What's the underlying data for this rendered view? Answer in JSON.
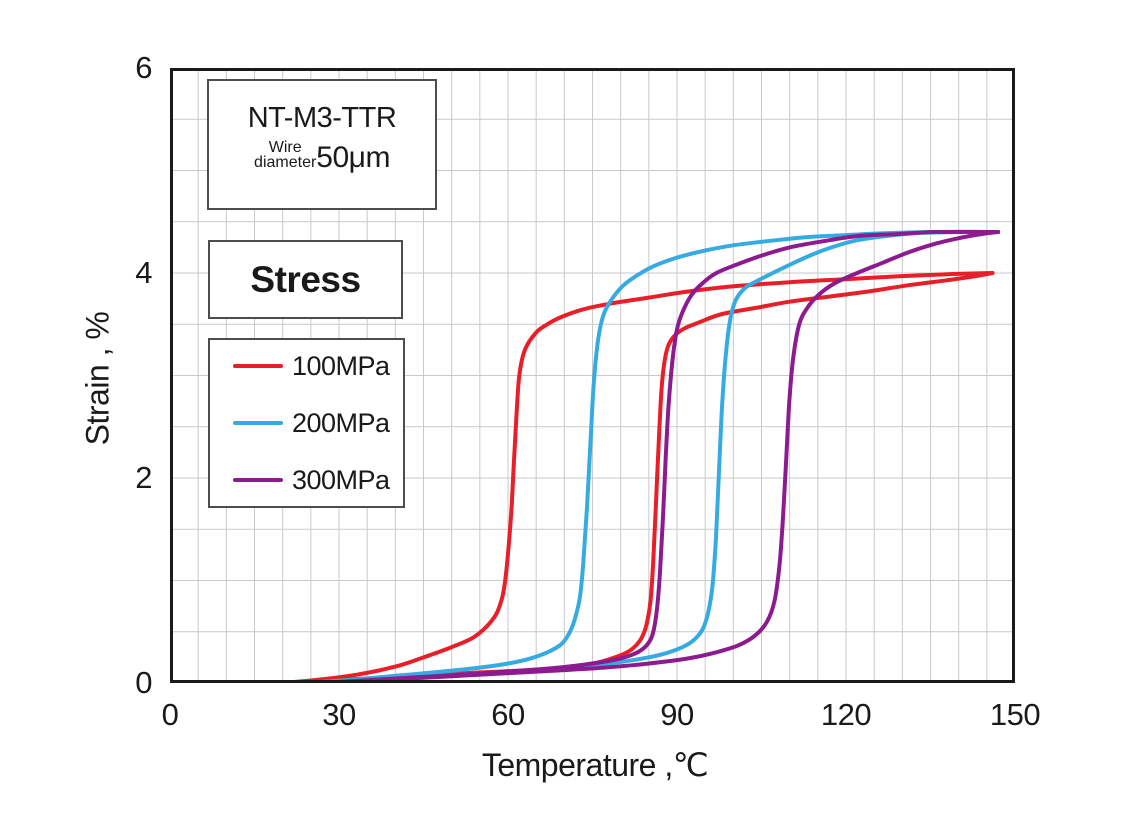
{
  "title_box": {
    "product": "NT-M3-TTR",
    "wire_label_line1": "Wire",
    "wire_label_line2": "diameter",
    "wire_value": "50μm"
  },
  "legend": {
    "title": "Stress",
    "items": [
      {
        "label": "100MPa",
        "color": "#e81e29"
      },
      {
        "label": "200MPa",
        "color": "#36abe1"
      },
      {
        "label": "300MPa",
        "color": "#8d1b90"
      }
    ]
  },
  "chart_data": {
    "type": "line",
    "title": "NT-M3-TTR Wire diameter 50μm",
    "xlabel": "Temperature ,℃",
    "ylabel": "Strain , %",
    "xlim": [
      0,
      150
    ],
    "ylim": [
      0,
      6
    ],
    "xticks": [
      0,
      30,
      60,
      90,
      120,
      150
    ],
    "yticks": [
      0,
      2,
      4,
      6
    ],
    "x_minor_step": 5,
    "y_minor_step": 0.5,
    "grid": true,
    "grid_color": "#c9c9c9",
    "frame_color": "#1a1a1a",
    "legend_title": "Stress",
    "legend_position": "upper-left",
    "series": [
      {
        "name": "100MPa",
        "color": "#e81e29",
        "branches": [
          {
            "phase": "heating",
            "points": [
              [
                20,
                0
              ],
              [
                30,
                0.03
              ],
              [
                40,
                0.06
              ],
              [
                50,
                0.09
              ],
              [
                58,
                0.11
              ],
              [
                65,
                0.13
              ],
              [
                71,
                0.16
              ],
              [
                76,
                0.2
              ],
              [
                80,
                0.27
              ],
              [
                82,
                0.33
              ],
              [
                83.5,
                0.42
              ],
              [
                84.5,
                0.55
              ],
              [
                85.3,
                0.8
              ],
              [
                85.8,
                1.2
              ],
              [
                86.3,
                1.8
              ],
              [
                86.8,
                2.4
              ],
              [
                87.3,
                2.9
              ],
              [
                88,
                3.2
              ],
              [
                89,
                3.35
              ],
              [
                91,
                3.45
              ],
              [
                94,
                3.52
              ],
              [
                98,
                3.6
              ],
              [
                104,
                3.66
              ],
              [
                110,
                3.72
              ],
              [
                117,
                3.77
              ],
              [
                124,
                3.82
              ],
              [
                131,
                3.88
              ],
              [
                138,
                3.93
              ],
              [
                143,
                3.97
              ],
              [
                146,
                4.0
              ]
            ]
          },
          {
            "phase": "cooling",
            "points": [
              [
                20,
                0
              ],
              [
                26,
                0.03
              ],
              [
                33,
                0.08
              ],
              [
                40,
                0.16
              ],
              [
                45,
                0.25
              ],
              [
                50,
                0.35
              ],
              [
                54,
                0.45
              ],
              [
                57,
                0.6
              ],
              [
                58.5,
                0.75
              ],
              [
                59.5,
                1.0
              ],
              [
                60.5,
                1.6
              ],
              [
                61,
                2.1
              ],
              [
                61.5,
                2.6
              ],
              [
                62,
                3.0
              ],
              [
                63,
                3.25
              ],
              [
                65,
                3.42
              ],
              [
                67,
                3.5
              ],
              [
                69,
                3.56
              ],
              [
                73,
                3.64
              ],
              [
                78,
                3.7
              ],
              [
                85,
                3.76
              ],
              [
                92,
                3.82
              ],
              [
                100,
                3.87
              ],
              [
                110,
                3.91
              ],
              [
                120,
                3.94
              ],
              [
                130,
                3.97
              ],
              [
                139,
                3.99
              ],
              [
                146,
                4.0
              ]
            ]
          }
        ]
      },
      {
        "name": "200MPa",
        "color": "#36abe1",
        "branches": [
          {
            "phase": "heating",
            "points": [
              [
                24,
                0
              ],
              [
                34,
                0.03
              ],
              [
                44,
                0.06
              ],
              [
                54,
                0.09
              ],
              [
                63,
                0.12
              ],
              [
                71,
                0.15
              ],
              [
                78,
                0.19
              ],
              [
                84,
                0.24
              ],
              [
                88,
                0.29
              ],
              [
                91,
                0.35
              ],
              [
                93,
                0.42
              ],
              [
                94.5,
                0.52
              ],
              [
                95.5,
                0.68
              ],
              [
                96.3,
                0.95
              ],
              [
                96.9,
                1.4
              ],
              [
                97.4,
                2.0
              ],
              [
                97.9,
                2.6
              ],
              [
                98.5,
                3.1
              ],
              [
                99.3,
                3.5
              ],
              [
                100.3,
                3.72
              ],
              [
                102,
                3.85
              ],
              [
                104.5,
                3.93
              ],
              [
                107,
                4.0
              ],
              [
                110,
                4.08
              ],
              [
                114,
                4.18
              ],
              [
                118,
                4.26
              ],
              [
                122,
                4.32
              ],
              [
                127,
                4.36
              ],
              [
                133,
                4.39
              ],
              [
                140,
                4.4
              ],
              [
                147,
                4.4
              ]
            ]
          },
          {
            "phase": "cooling",
            "points": [
              [
                24,
                0
              ],
              [
                32,
                0.03
              ],
              [
                40,
                0.07
              ],
              [
                48,
                0.11
              ],
              [
                55,
                0.15
              ],
              [
                60,
                0.19
              ],
              [
                64,
                0.24
              ],
              [
                67,
                0.3
              ],
              [
                69.5,
                0.38
              ],
              [
                71,
                0.5
              ],
              [
                72,
                0.65
              ],
              [
                72.8,
                0.85
              ],
              [
                73.4,
                1.2
              ],
              [
                74,
                1.7
              ],
              [
                74.6,
                2.3
              ],
              [
                75.2,
                2.9
              ],
              [
                76,
                3.35
              ],
              [
                77,
                3.6
              ],
              [
                78.5,
                3.75
              ],
              [
                80.5,
                3.88
              ],
              [
                83,
                3.98
              ],
              [
                86,
                4.07
              ],
              [
                90,
                4.15
              ],
              [
                95,
                4.22
              ],
              [
                100,
                4.27
              ],
              [
                106,
                4.31
              ],
              [
                113,
                4.35
              ],
              [
                120,
                4.37
              ],
              [
                128,
                4.39
              ],
              [
                136,
                4.4
              ],
              [
                147,
                4.4
              ]
            ]
          }
        ]
      },
      {
        "name": "300MPa",
        "color": "#8d1b90",
        "branches": [
          {
            "phase": "heating",
            "points": [
              [
                27,
                0
              ],
              [
                38,
                0.03
              ],
              [
                48,
                0.06
              ],
              [
                58,
                0.09
              ],
              [
                68,
                0.12
              ],
              [
                77,
                0.15
              ],
              [
                85,
                0.19
              ],
              [
                92,
                0.24
              ],
              [
                97,
                0.3
              ],
              [
                101,
                0.37
              ],
              [
                104,
                0.47
              ],
              [
                106,
                0.6
              ],
              [
                107.3,
                0.8
              ],
              [
                108.2,
                1.15
              ],
              [
                108.8,
                1.6
              ],
              [
                109.4,
                2.2
              ],
              [
                110,
                2.8
              ],
              [
                110.7,
                3.2
              ],
              [
                111.7,
                3.5
              ],
              [
                113,
                3.65
              ],
              [
                115,
                3.78
              ],
              [
                118,
                3.9
              ],
              [
                122,
                4.0
              ],
              [
                126.5,
                4.1
              ],
              [
                131,
                4.2
              ],
              [
                135.5,
                4.28
              ],
              [
                140,
                4.34
              ],
              [
                144,
                4.38
              ],
              [
                147,
                4.4
              ]
            ]
          },
          {
            "phase": "cooling",
            "points": [
              [
                27,
                0
              ],
              [
                36,
                0.03
              ],
              [
                45,
                0.06
              ],
              [
                54,
                0.09
              ],
              [
                62,
                0.12
              ],
              [
                69,
                0.15
              ],
              [
                75,
                0.19
              ],
              [
                80,
                0.24
              ],
              [
                83,
                0.3
              ],
              [
                84.8,
                0.38
              ],
              [
                85.8,
                0.5
              ],
              [
                86.5,
                0.75
              ],
              [
                87,
                1.1
              ],
              [
                87.5,
                1.6
              ],
              [
                88,
                2.2
              ],
              [
                88.5,
                2.7
              ],
              [
                89.2,
                3.15
              ],
              [
                90,
                3.45
              ],
              [
                91,
                3.62
              ],
              [
                92.5,
                3.78
              ],
              [
                94.5,
                3.9
              ],
              [
                97,
                4.0
              ],
              [
                100.5,
                4.08
              ],
              [
                105,
                4.17
              ],
              [
                110,
                4.25
              ],
              [
                116,
                4.31
              ],
              [
                122,
                4.36
              ],
              [
                129,
                4.38
              ],
              [
                136,
                4.4
              ],
              [
                147,
                4.4
              ]
            ]
          }
        ]
      }
    ]
  }
}
